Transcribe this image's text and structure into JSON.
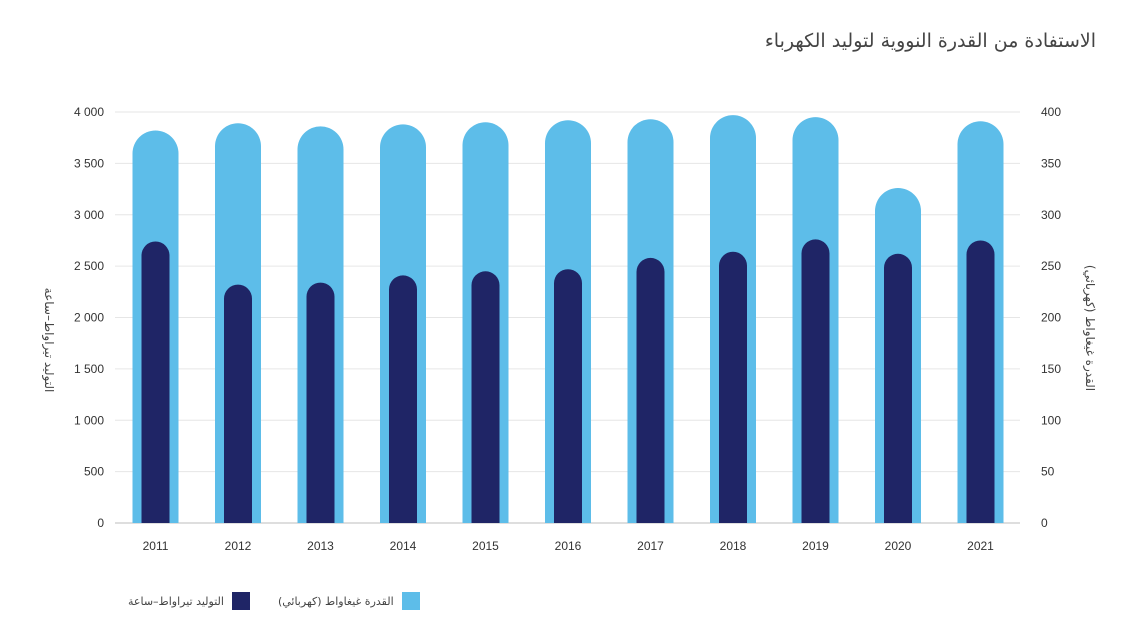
{
  "chart_data": {
    "type": "bar",
    "title": "الاستفادة من القدرة النووية لتوليد الكهرباء",
    "categories": [
      "2011",
      "2012",
      "2013",
      "2014",
      "2015",
      "2016",
      "2017",
      "2018",
      "2019",
      "2020",
      "2021"
    ],
    "series": [
      {
        "name": "القدرة غيغاواط (كهربائي)",
        "axis": "right",
        "color": "#5dbde9",
        "values": [
          382,
          389,
          386,
          388,
          390,
          392,
          393,
          397,
          395,
          326,
          391
        ]
      },
      {
        "name": "التوليد تيراواط–ساعة",
        "axis": "left",
        "color": "#1f2566",
        "values": [
          2740,
          2320,
          2340,
          2410,
          2450,
          2470,
          2580,
          2640,
          2760,
          2620,
          2750
        ]
      }
    ],
    "left_axis": {
      "label": "التوليد تيراواط–ساعة",
      "ylim": [
        0,
        4000
      ],
      "ticks": [
        0,
        500,
        1000,
        1500,
        2000,
        2500,
        3000,
        3500,
        4000
      ],
      "tick_labels": [
        "0",
        "500",
        "1 000",
        "1 500",
        "2 000",
        "2 500",
        "3 000",
        "3 500",
        "4 000"
      ]
    },
    "right_axis": {
      "label": "القدرة غيغاواط (كهربائي)",
      "ylim": [
        0,
        400
      ],
      "ticks": [
        0,
        50,
        100,
        150,
        200,
        250,
        300,
        350,
        400
      ],
      "tick_labels": [
        "0",
        "50",
        "100",
        "150",
        "200",
        "250",
        "300",
        "350",
        "400"
      ]
    },
    "grid": true,
    "legend_position": "bottom-left"
  },
  "legend": {
    "items": [
      {
        "label": "القدرة غيغاواط (كهربائي)",
        "color": "#5dbde9"
      },
      {
        "label": "التوليد تيراواط–ساعة",
        "color": "#1f2566"
      }
    ]
  }
}
